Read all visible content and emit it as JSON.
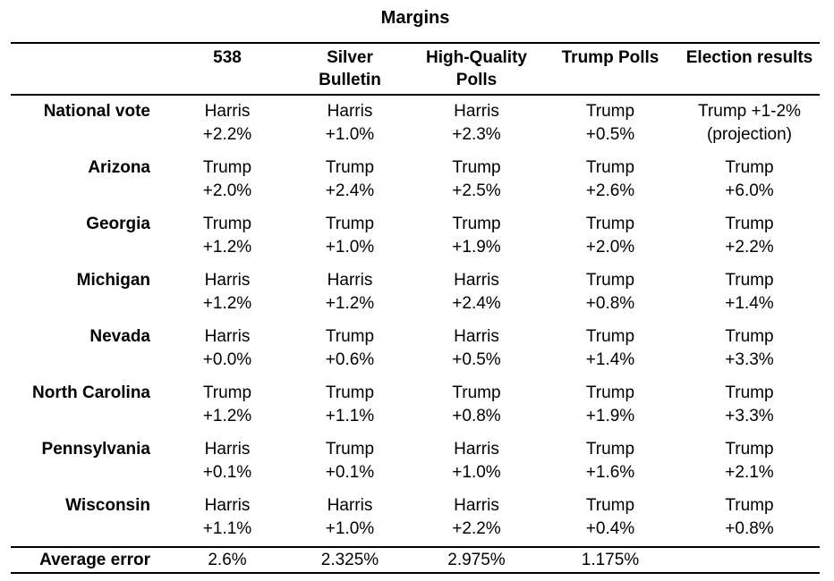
{
  "title": "Margins",
  "columns": [
    {
      "id": "538",
      "label": "538"
    },
    {
      "id": "silver-bulletin",
      "label": "Silver\nBulletin"
    },
    {
      "id": "high-quality-polls",
      "label": "High-Quality\nPolls"
    },
    {
      "id": "trump-polls",
      "label": "Trump Polls"
    },
    {
      "id": "election-results",
      "label": "Election results"
    }
  ],
  "rows": [
    {
      "label": "National vote",
      "cells": [
        {
          "leader": "Harris",
          "margin": "+2.2%"
        },
        {
          "leader": "Harris",
          "margin": "+1.0%"
        },
        {
          "leader": "Harris",
          "margin": "+2.3%"
        },
        {
          "leader": "Trump",
          "margin": "+0.5%"
        },
        {
          "leader": "Trump +1-2%",
          "margin": "(projection)"
        }
      ]
    },
    {
      "label": "Arizona",
      "cells": [
        {
          "leader": "Trump",
          "margin": "+2.0%"
        },
        {
          "leader": "Trump",
          "margin": "+2.4%"
        },
        {
          "leader": "Trump",
          "margin": "+2.5%"
        },
        {
          "leader": "Trump",
          "margin": "+2.6%"
        },
        {
          "leader": "Trump",
          "margin": "+6.0%"
        }
      ]
    },
    {
      "label": "Georgia",
      "cells": [
        {
          "leader": "Trump",
          "margin": "+1.2%"
        },
        {
          "leader": "Trump",
          "margin": "+1.0%"
        },
        {
          "leader": "Trump",
          "margin": "+1.9%"
        },
        {
          "leader": "Trump",
          "margin": "+2.0%"
        },
        {
          "leader": "Trump",
          "margin": "+2.2%"
        }
      ]
    },
    {
      "label": "Michigan",
      "cells": [
        {
          "leader": "Harris",
          "margin": "+1.2%"
        },
        {
          "leader": "Harris",
          "margin": "+1.2%"
        },
        {
          "leader": "Harris",
          "margin": "+2.4%"
        },
        {
          "leader": "Trump",
          "margin": "+0.8%"
        },
        {
          "leader": "Trump",
          "margin": "+1.4%"
        }
      ]
    },
    {
      "label": "Nevada",
      "cells": [
        {
          "leader": "Harris",
          "margin": "+0.0%"
        },
        {
          "leader": "Trump",
          "margin": "+0.6%"
        },
        {
          "leader": "Harris",
          "margin": "+0.5%"
        },
        {
          "leader": "Trump",
          "margin": "+1.4%"
        },
        {
          "leader": "Trump",
          "margin": "+3.3%"
        }
      ]
    },
    {
      "label": "North Carolina",
      "cells": [
        {
          "leader": "Trump",
          "margin": "+1.2%"
        },
        {
          "leader": "Trump",
          "margin": "+1.1%"
        },
        {
          "leader": "Trump",
          "margin": "+0.8%"
        },
        {
          "leader": "Trump",
          "margin": "+1.9%"
        },
        {
          "leader": "Trump",
          "margin": "+3.3%"
        }
      ]
    },
    {
      "label": "Pennsylvania",
      "cells": [
        {
          "leader": "Harris",
          "margin": "+0.1%"
        },
        {
          "leader": "Trump",
          "margin": "+0.1%"
        },
        {
          "leader": "Harris",
          "margin": "+1.0%"
        },
        {
          "leader": "Trump",
          "margin": "+1.6%"
        },
        {
          "leader": "Trump",
          "margin": "+2.1%"
        }
      ]
    },
    {
      "label": "Wisconsin",
      "cells": [
        {
          "leader": "Harris",
          "margin": "+1.1%"
        },
        {
          "leader": "Harris",
          "margin": "+1.0%"
        },
        {
          "leader": "Harris",
          "margin": "+2.2%"
        },
        {
          "leader": "Trump",
          "margin": "+0.4%"
        },
        {
          "leader": "Trump",
          "margin": "+0.8%"
        }
      ]
    }
  ],
  "footer": {
    "label": "Average error",
    "values": [
      "2.6%",
      "2.325%",
      "2.975%",
      "1.175%",
      ""
    ]
  }
}
